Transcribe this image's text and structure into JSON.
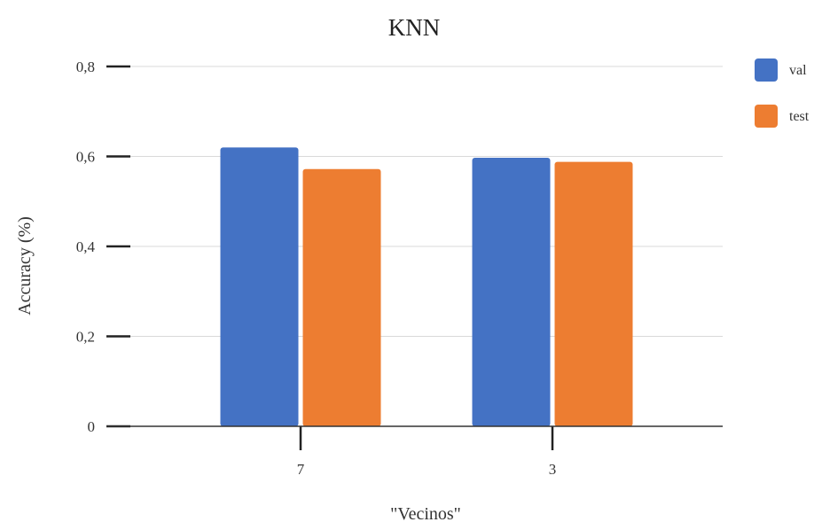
{
  "chart_data": {
    "type": "bar",
    "title": "KNN",
    "xlabel": "\"Vecinos\"",
    "ylabel": "Accuracy (%)",
    "categories": [
      "7",
      "3"
    ],
    "series": [
      {
        "name": "val",
        "color": "#4472c4",
        "values": [
          0.62,
          0.597
        ]
      },
      {
        "name": "test",
        "color": "#ed7d31",
        "values": [
          0.572,
          0.588
        ]
      }
    ],
    "ylim": [
      0,
      0.8
    ],
    "yticks": [
      0,
      0.2,
      0.4,
      0.6,
      0.8
    ],
    "ytick_labels": [
      "0",
      "0,2",
      "0,4",
      "0,6",
      "0,8"
    ],
    "grid": true,
    "legend": "right"
  }
}
